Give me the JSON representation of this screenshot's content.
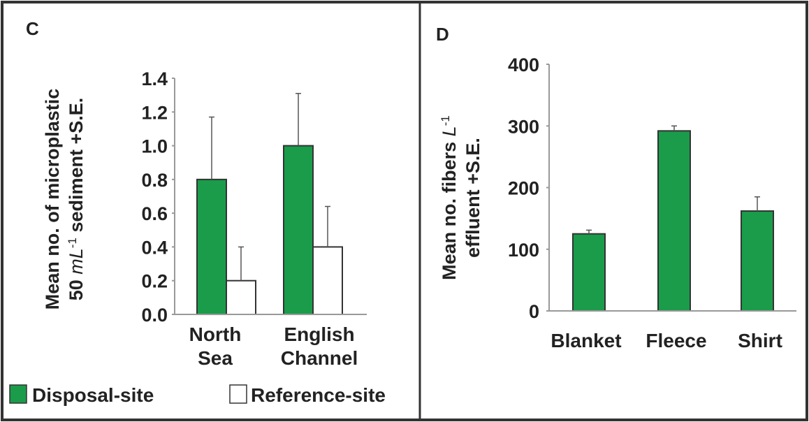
{
  "colors": {
    "disposal": "#1a9c4a",
    "reference": "#ffffff",
    "axis": "#999999",
    "frame": "#333333",
    "text": "#222222"
  },
  "chart_data": [
    {
      "type": "bar",
      "panel": "C",
      "ylabel_line1": "Mean no. of microplastic",
      "ylabel_line2_prefix": "50 ",
      "ylabel_line2_unit": "mL",
      "ylabel_line2_exp": "-1",
      "ylabel_line2_suffix": " sediment +S.E.",
      "categories": [
        [
          "North",
          "Sea"
        ],
        [
          "English",
          "Channel"
        ]
      ],
      "ylim": [
        0,
        1.4
      ],
      "yticks": [
        "0.0",
        "0.2",
        "0.4",
        "0.6",
        "0.8",
        "1.0",
        "1.2",
        "1.4"
      ],
      "series": [
        {
          "name": "Disposal-site",
          "values": [
            0.8,
            1.0
          ],
          "errors": [
            0.37,
            0.31
          ]
        },
        {
          "name": "Reference-site",
          "values": [
            0.2,
            0.4
          ],
          "errors": [
            0.2,
            0.24
          ]
        }
      ],
      "legend": {
        "placement": "bottom",
        "items": [
          "Disposal-site",
          "Reference-site"
        ]
      }
    },
    {
      "type": "bar",
      "panel": "D",
      "ylabel_line1_prefix": "Mean no. fibers ",
      "ylabel_line1_unit": "L",
      "ylabel_line1_exp": "-1",
      "ylabel_line2": "effluent +S.E.",
      "categories": [
        "Blanket",
        "Fleece",
        "Shirt"
      ],
      "ylim": [
        0,
        400
      ],
      "yticks": [
        "0",
        "100",
        "200",
        "300",
        "400"
      ],
      "series": [
        {
          "values": [
            125,
            292,
            162
          ],
          "errors": [
            6,
            8,
            23
          ]
        }
      ]
    }
  ]
}
